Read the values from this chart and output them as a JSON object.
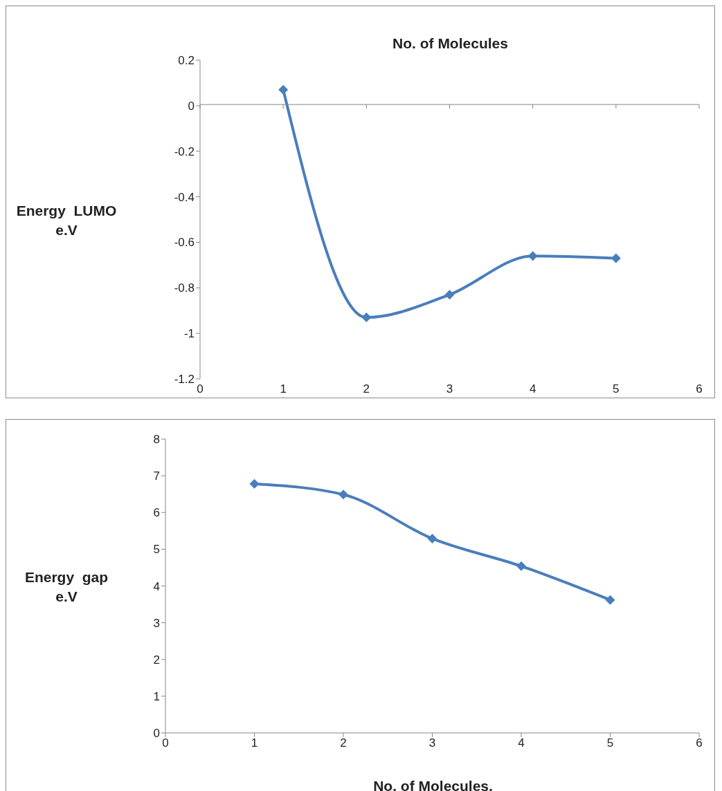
{
  "chart_data": [
    {
      "type": "line",
      "xlabel": "No. of Molecules",
      "ylabel": "Energy  LUMO e.V",
      "x": [
        1,
        2,
        3,
        4,
        5
      ],
      "xlim": [
        0,
        6
      ],
      "xticks": [
        0,
        1,
        2,
        3,
        4,
        5,
        6
      ],
      "ylim": [
        -1.2,
        0.2
      ],
      "yticks": [
        -1.2,
        -1,
        -0.8,
        -0.6,
        -0.4,
        -0.2,
        0,
        0.2
      ],
      "marker": "diamond",
      "series": [
        {
          "color": "#4a7ebb",
          "values": [
            0.07,
            -0.93,
            -0.83,
            -0.66,
            -0.67
          ]
        }
      ]
    },
    {
      "type": "line",
      "xlabel": "No. of Molecules.",
      "ylabel": "Energy  gap e.V",
      "x": [
        1,
        2,
        3,
        4,
        5
      ],
      "xlim": [
        0,
        6
      ],
      "xticks": [
        0,
        1,
        2,
        3,
        4,
        5,
        6
      ],
      "ylim": [
        0,
        8
      ],
      "yticks": [
        0,
        1,
        2,
        3,
        4,
        5,
        6,
        7,
        8
      ],
      "marker": "diamond",
      "series": [
        {
          "color": "#4a7ebb",
          "values": [
            6.78,
            6.49,
            5.29,
            4.54,
            3.62
          ]
        }
      ]
    }
  ]
}
